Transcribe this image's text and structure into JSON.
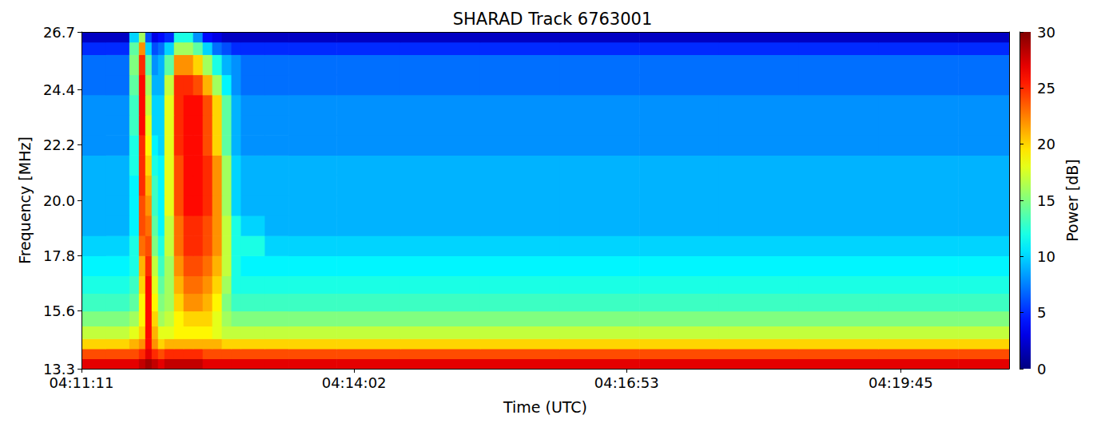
{
  "chart_data": {
    "type": "heatmap",
    "title": "SHARAD Track 6763001",
    "x_label": "Time (UTC)",
    "y_label": "Frequency [MHz]",
    "xlim": [
      15071,
      15653
    ],
    "xticks": [
      {
        "value": 15071,
        "label": "04:11:11"
      },
      {
        "value": 15242,
        "label": "04:14:02"
      },
      {
        "value": 15413,
        "label": "04:16:53"
      },
      {
        "value": 15585,
        "label": "04:19:45"
      }
    ],
    "ylim": [
      13.3,
      26.7
    ],
    "yticks": [
      13.3,
      15.6,
      17.8,
      {
        "value": 20,
        "label": "20.0"
      },
      22.2,
      24.4,
      26.7
    ],
    "x_bins": [
      15071,
      15086,
      15101,
      15107,
      15111,
      15115,
      15119,
      15123,
      15129,
      15135,
      15141,
      15147,
      15153,
      15159,
      15165,
      15171,
      15186,
      15201,
      15231,
      15271,
      15321,
      15371,
      15421,
      15471,
      15521,
      15571,
      15621,
      15653
    ],
    "y_bins": [
      13.3,
      13.7,
      14.1,
      14.5,
      15.0,
      15.6,
      16.3,
      17.0,
      17.8,
      18.6,
      19.4,
      20.2,
      21.0,
      21.8,
      22.6,
      23.4,
      24.2,
      25.0,
      25.8,
      26.3,
      26.7
    ],
    "cells": [
      [
        27,
        27,
        27,
        28,
        29,
        28,
        27,
        28,
        28,
        28,
        28,
        27,
        27,
        27,
        27,
        27,
        27,
        27,
        27,
        27,
        27,
        27,
        27,
        27,
        27,
        27,
        27
      ],
      [
        24,
        24,
        24,
        25,
        27,
        25,
        24,
        25,
        25,
        25,
        25,
        24,
        24,
        24,
        24,
        24,
        24,
        24,
        24,
        24,
        24,
        24,
        24,
        24,
        24,
        24,
        24
      ],
      [
        20,
        20,
        21,
        22,
        26,
        22,
        20,
        21,
        21,
        21,
        21,
        21,
        21,
        20,
        20,
        20,
        20,
        20,
        20,
        20,
        20,
        20,
        20,
        20,
        20,
        20,
        20
      ],
      [
        17,
        17,
        18,
        20,
        26,
        21,
        18,
        18,
        19,
        19,
        19,
        19,
        18,
        17,
        17,
        17,
        17,
        17,
        17,
        17,
        17,
        17,
        17,
        17,
        17,
        17,
        17
      ],
      [
        15,
        15,
        16,
        19,
        26,
        20,
        16,
        17,
        19,
        20,
        20,
        20,
        18,
        16,
        15,
        15,
        15,
        15,
        15,
        15,
        15,
        15,
        15,
        15,
        15,
        15,
        15
      ],
      [
        13,
        13,
        14,
        19,
        26,
        19,
        15,
        16,
        20,
        22,
        22,
        21,
        19,
        15,
        13,
        13,
        13,
        13,
        13,
        13,
        13,
        13,
        13,
        13,
        13,
        13,
        13
      ],
      [
        12,
        12,
        13,
        20,
        26,
        18,
        14,
        16,
        21,
        23,
        23,
        22,
        20,
        16,
        12,
        12,
        12,
        12,
        12,
        12,
        12,
        12,
        12,
        12,
        12,
        12,
        12
      ],
      [
        11,
        11,
        12,
        21,
        25,
        17,
        13,
        16,
        22,
        24,
        24,
        23,
        21,
        17,
        12,
        11,
        11,
        11,
        11,
        11,
        11,
        11,
        11,
        11,
        11,
        11,
        11
      ],
      [
        10,
        10,
        12,
        23,
        24,
        15,
        12,
        17,
        23,
        25,
        25,
        24,
        22,
        17,
        12,
        12,
        10,
        10,
        10,
        10,
        10,
        10,
        10,
        10,
        10,
        10,
        10
      ],
      [
        9,
        9,
        11,
        24,
        23,
        14,
        11,
        17,
        23,
        25,
        25,
        24,
        22,
        17,
        12,
        10,
        9,
        9,
        9,
        9,
        9,
        9,
        9,
        9,
        9,
        9,
        9
      ],
      [
        9,
        9,
        11,
        24,
        22,
        13,
        11,
        18,
        24,
        26,
        26,
        25,
        22,
        16,
        10,
        9,
        9,
        9,
        9,
        9,
        9,
        9,
        9,
        9,
        9,
        9,
        9
      ],
      [
        9,
        9,
        11,
        25,
        21,
        13,
        11,
        18,
        24,
        26,
        26,
        25,
        22,
        16,
        10,
        9,
        9,
        9,
        9,
        9,
        9,
        9,
        9,
        9,
        9,
        9,
        9
      ],
      [
        9,
        9,
        12,
        25,
        20,
        12,
        11,
        18,
        24,
        26,
        26,
        25,
        22,
        16,
        10,
        9,
        9,
        9,
        9,
        9,
        9,
        9,
        9,
        9,
        9,
        9,
        9
      ],
      [
        8,
        8,
        12,
        25,
        19,
        11,
        10,
        18,
        25,
        26,
        26,
        24,
        20,
        14,
        9,
        8,
        8,
        8,
        8,
        8,
        8,
        8,
        8,
        8,
        8,
        8,
        8
      ],
      [
        8,
        8,
        13,
        26,
        18,
        10,
        10,
        18,
        25,
        26,
        26,
        24,
        20,
        14,
        9,
        8,
        8,
        8,
        8,
        8,
        8,
        8,
        8,
        8,
        8,
        8,
        8
      ],
      [
        8,
        8,
        13,
        26,
        17,
        10,
        10,
        18,
        25,
        26,
        26,
        24,
        20,
        14,
        9,
        8,
        8,
        8,
        8,
        8,
        8,
        8,
        8,
        8,
        8,
        8,
        8
      ],
      [
        7,
        7,
        14,
        26,
        16,
        9,
        9,
        17,
        25,
        25,
        24,
        21,
        16,
        11,
        8,
        7,
        7,
        7,
        7,
        7,
        7,
        7,
        7,
        7,
        7,
        7,
        7
      ],
      [
        7,
        7,
        15,
        25,
        14,
        8,
        9,
        14,
        22,
        22,
        20,
        16,
        12,
        9,
        8,
        7,
        7,
        7,
        7,
        7,
        7,
        7,
        7,
        7,
        7,
        7,
        7
      ],
      [
        5,
        5,
        14,
        22,
        10,
        6,
        7,
        10,
        16,
        16,
        14,
        10,
        7,
        6,
        5,
        5,
        5,
        5,
        5,
        5,
        5,
        5,
        5,
        5,
        5,
        5,
        5
      ],
      [
        2,
        2,
        10,
        16,
        6,
        3,
        4,
        5,
        12,
        12,
        8,
        4,
        3,
        2,
        2,
        2,
        2,
        2,
        2,
        2,
        2,
        2,
        2,
        2,
        2,
        2,
        2
      ]
    ],
    "colorbar": {
      "label": "Power [dB]",
      "range": [
        0,
        30
      ],
      "ticks": [
        0,
        5,
        10,
        15,
        20,
        25,
        30
      ]
    }
  }
}
